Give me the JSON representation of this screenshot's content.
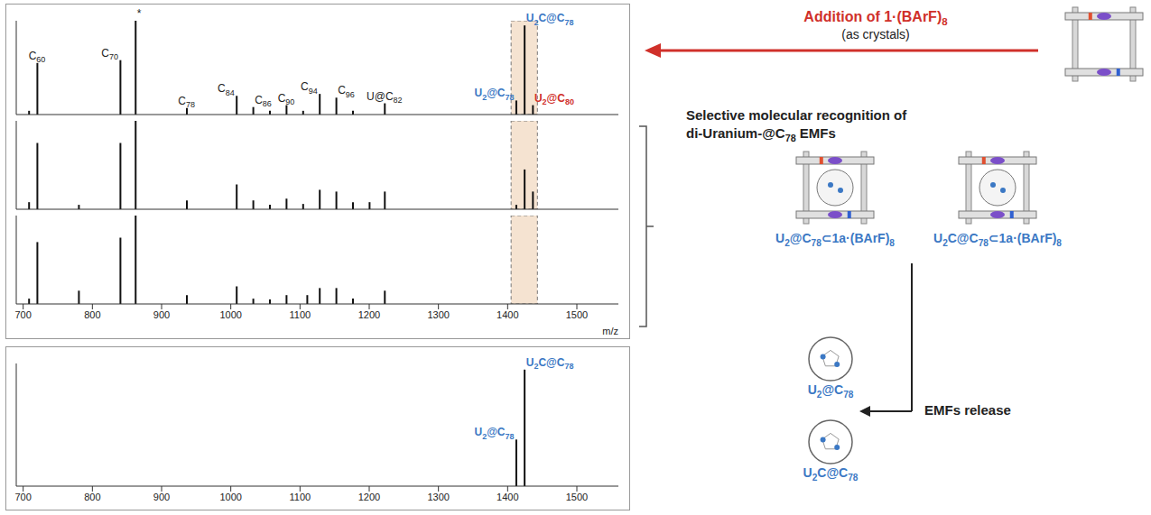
{
  "chart_data": [
    {
      "type": "bar",
      "color": "#111111",
      "xlim": [
        690,
        1560
      ],
      "ylim": [
        0,
        100
      ],
      "tick_labels": false,
      "x": [
        708,
        720,
        840,
        862,
        936,
        1008,
        1032,
        1056,
        1080,
        1104,
        1128,
        1152,
        1176,
        1222,
        1412,
        1424,
        1436
      ],
      "values": [
        4,
        55,
        58,
        100,
        7,
        20,
        8,
        4,
        10,
        4,
        22,
        18,
        4,
        12,
        15,
        95,
        10
      ],
      "annotations": [
        {
          "text": "C60",
          "x": 720
        },
        {
          "text": "C70",
          "x": 840
        },
        {
          "text": "*",
          "x": 862
        },
        {
          "text": "C78",
          "x": 936
        },
        {
          "text": "C84",
          "x": 1008
        },
        {
          "text": "C86",
          "x": 1032
        },
        {
          "text": "C90",
          "x": 1080
        },
        {
          "text": "C94",
          "x": 1128
        },
        {
          "text": "C96",
          "x": 1152
        },
        {
          "text": "U@C82",
          "x": 1222
        },
        {
          "text": "U2@C78",
          "x": 1412,
          "color": "#3b78c4"
        },
        {
          "text": "U2C@C78",
          "x": 1424,
          "color": "#3b78c4"
        },
        {
          "text": "U2@C80",
          "x": 1436,
          "color": "#d0302a"
        }
      ]
    },
    {
      "type": "bar",
      "color": "#111111",
      "xlim": [
        690,
        1560
      ],
      "ylim": [
        0,
        100
      ],
      "tick_labels": false,
      "x": [
        708,
        720,
        780,
        840,
        862,
        936,
        1008,
        1032,
        1056,
        1080,
        1104,
        1128,
        1152,
        1176,
        1200,
        1222,
        1412,
        1424,
        1436
      ],
      "values": [
        8,
        75,
        5,
        75,
        100,
        10,
        28,
        10,
        5,
        12,
        6,
        22,
        20,
        8,
        8,
        20,
        5,
        45,
        20
      ]
    },
    {
      "type": "bar",
      "color": "#111111",
      "xlim": [
        690,
        1560
      ],
      "ylim": [
        0,
        100
      ],
      "tick_labels": "x",
      "x_label": "m/z",
      "xticks": [
        700,
        800,
        900,
        1000,
        1100,
        1200,
        1300,
        1400,
        1500
      ],
      "x": [
        708,
        720,
        780,
        840,
        862,
        936,
        1008,
        1032,
        1056,
        1080,
        1110,
        1128,
        1152,
        1176,
        1222
      ],
      "values": [
        6,
        70,
        15,
        75,
        100,
        10,
        20,
        6,
        5,
        10,
        10,
        18,
        18,
        6,
        15
      ]
    },
    {
      "type": "bar",
      "color": "#111111",
      "xlim": [
        690,
        1560
      ],
      "ylim": [
        0,
        100
      ],
      "tick_labels": "x",
      "xticks": [
        700,
        800,
        900,
        1000,
        1100,
        1200,
        1300,
        1400,
        1500
      ],
      "x": [
        1412,
        1424
      ],
      "values": [
        38,
        95
      ],
      "annotations": [
        {
          "text": "U2@C78",
          "x": 1412,
          "color": "#3b78c4"
        },
        {
          "text": "U2C@C78",
          "x": 1424,
          "color": "#3b78c4"
        }
      ]
    }
  ],
  "side_panel": {
    "addition": "Addition of 1·(BArF)8",
    "addition_note": "(as crystals)",
    "recognition": [
      "Selective molecular recognition of",
      "di-Uranium-@C78 EMFs"
    ],
    "complexes": [
      "U2@C78⊂1a·(BArF)8",
      "U2C@C78⊂1a·(BArF)8"
    ],
    "release": "EMFs release",
    "released": [
      "U2@C78",
      "U2C@C78"
    ]
  }
}
